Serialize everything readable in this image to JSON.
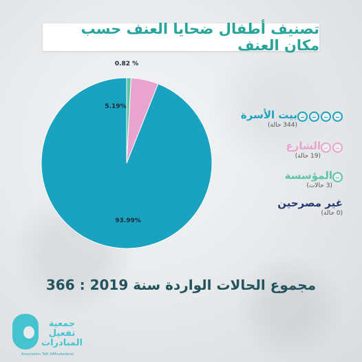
{
  "title": "تصنيف أطفال ضحايا العنف حسب مكان العنف",
  "total_text": "مجموع الحالات الواردة سنة 2019 : 366",
  "colors": {
    "title": "#27a59a",
    "home": "#1aa3c0",
    "street": "#e8a3cf",
    "institution": "#5bc5a4",
    "unknown": "#233a72"
  },
  "legend": [
    {
      "label": "بيت الأسرة",
      "count": "(344 حالة)",
      "color": "#1aa3c0",
      "icons": 4
    },
    {
      "label": "الشارع",
      "count": "(19 حالة)",
      "color": "#e8a3cf",
      "icons": 2
    },
    {
      "label": "المؤسسة",
      "count": "(3 حالات)",
      "color": "#5bc5a4",
      "icons": 1
    },
    {
      "label": "غير مصرحين",
      "count": "(0 حالة)",
      "color": "#233a72",
      "icons": 0
    }
  ],
  "chart_data": {
    "type": "pie",
    "slices": [
      {
        "name": "بيت الأسرة",
        "value": 93.99,
        "label": "93.99%",
        "color": "#1aa3c0"
      },
      {
        "name": "الشارع",
        "value": 5.19,
        "label": "5.19%",
        "color": "#e8a3cf"
      },
      {
        "name": "المؤسسة",
        "value": 0.82,
        "label": "0.82 %",
        "color": "#5bc5a4"
      },
      {
        "name": "غير مصرحين",
        "value": 0,
        "label": "",
        "color": "#233a72"
      }
    ],
    "start": "12 o'clock, counter-clockwise"
  },
  "logo": {
    "name_line1": "جمعية",
    "name_line2": "تفعيل",
    "name_line3": "المبادرات",
    "latin": "Association Tafil AlMoubadarat"
  }
}
